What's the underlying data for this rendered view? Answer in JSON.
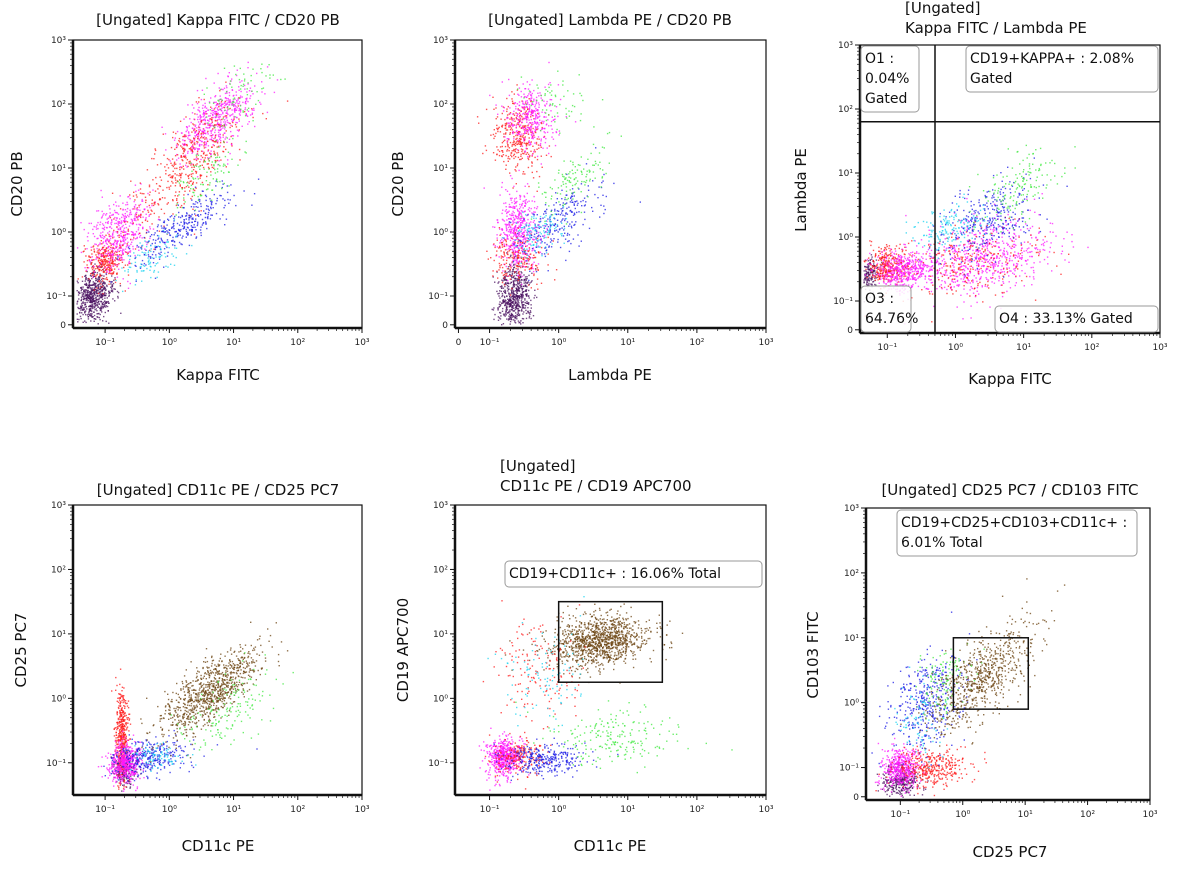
{
  "colors": {
    "purple": "#4a1060",
    "red": "#ff1a1a",
    "magenta": "#ff1aff",
    "blue": "#1a1ae6",
    "cyan": "#1ad2f0",
    "green": "#3ee83e",
    "brown": "#6b4310"
  },
  "chart_data": [
    {
      "type": "scatter",
      "title": [
        "[Ungated] Kappa FITC / CD20 PB"
      ],
      "xlabel": "Kappa FITC",
      "ylabel": "CD20 PB",
      "xscale": "log",
      "yscale": "log",
      "xlim_decades": [
        -1.5,
        3
      ],
      "ylim_decades": [
        -1.5,
        3
      ],
      "xticks": [
        "10⁻¹",
        "10⁰",
        "10¹",
        "10²",
        "10³"
      ],
      "yticks": [
        "0",
        "10⁻¹",
        "10⁰",
        "10¹",
        "10²",
        "10³"
      ],
      "populations": [
        {
          "color": "purple",
          "center": [
            -1.2,
            -1.0
          ],
          "spread": [
            0.15,
            0.2
          ],
          "n": 600,
          "corr": 0.2
        },
        {
          "color": "red",
          "center": [
            -1.0,
            -0.45
          ],
          "spread": [
            0.15,
            0.18
          ],
          "n": 300,
          "corr": 0.2
        },
        {
          "color": "magenta",
          "center": [
            -0.8,
            0.0
          ],
          "spread": [
            0.25,
            0.3
          ],
          "n": 450,
          "corr": 0.3
        },
        {
          "color": "red",
          "center": [
            0.1,
            0.8
          ],
          "spread": [
            0.5,
            0.5
          ],
          "n": 300,
          "corr": 0.8
        },
        {
          "color": "magenta",
          "center": [
            0.7,
            1.75
          ],
          "spread": [
            0.3,
            0.3
          ],
          "n": 550,
          "corr": 0.6
        },
        {
          "color": "red",
          "center": [
            0.45,
            1.4
          ],
          "spread": [
            0.3,
            0.3
          ],
          "n": 180,
          "corr": 0.5
        },
        {
          "color": "blue",
          "center": [
            0.2,
            0.1
          ],
          "spread": [
            0.4,
            0.3
          ],
          "n": 320,
          "corr": 0.85
        },
        {
          "color": "cyan",
          "center": [
            -0.3,
            -0.4
          ],
          "spread": [
            0.25,
            0.2
          ],
          "n": 100,
          "corr": 0.5
        },
        {
          "color": "green",
          "center": [
            0.6,
            0.9
          ],
          "spread": [
            0.25,
            0.25
          ],
          "n": 100,
          "corr": 0.7
        },
        {
          "color": "green",
          "center": [
            1.1,
            2.1
          ],
          "spread": [
            0.3,
            0.3
          ],
          "n": 80,
          "corr": 0.5
        }
      ],
      "gates": [],
      "annotations": []
    },
    {
      "type": "scatter",
      "title": [
        "[Ungated] Lambda PE / CD20 PB"
      ],
      "xlabel": "Lambda PE",
      "ylabel": "CD20 PB",
      "xscale": "log",
      "yscale": "log",
      "xlim_decades": [
        -1.5,
        3
      ],
      "ylim_decades": [
        -1.5,
        3
      ],
      "xticks": [
        "0",
        "10⁻¹",
        "10⁰",
        "10¹",
        "10²",
        "10³"
      ],
      "yticks": [
        "0",
        "10⁻¹",
        "10⁰",
        "10¹",
        "10²",
        "10³"
      ],
      "populations": [
        {
          "color": "purple",
          "center": [
            -0.65,
            -1.0
          ],
          "spread": [
            0.12,
            0.25
          ],
          "n": 600,
          "corr": 0
        },
        {
          "color": "magenta",
          "center": [
            -0.6,
            0.0
          ],
          "spread": [
            0.15,
            0.3
          ],
          "n": 500,
          "corr": 0
        },
        {
          "color": "red",
          "center": [
            -0.6,
            -0.4
          ],
          "spread": [
            0.2,
            0.2
          ],
          "n": 200,
          "corr": 0
        },
        {
          "color": "red",
          "center": [
            -0.6,
            1.5
          ],
          "spread": [
            0.18,
            0.3
          ],
          "n": 350,
          "corr": 0
        },
        {
          "color": "magenta",
          "center": [
            -0.4,
            1.8
          ],
          "spread": [
            0.18,
            0.25
          ],
          "n": 350,
          "corr": 0
        },
        {
          "color": "blue",
          "center": [
            0.0,
            0.2
          ],
          "spread": [
            0.3,
            0.3
          ],
          "n": 250,
          "corr": 0.6
        },
        {
          "color": "cyan",
          "center": [
            -0.3,
            0.0
          ],
          "spread": [
            0.2,
            0.2
          ],
          "n": 120,
          "corr": 0.3
        },
        {
          "color": "green",
          "center": [
            0.2,
            0.8
          ],
          "spread": [
            0.25,
            0.3
          ],
          "n": 120,
          "corr": 0.6
        },
        {
          "color": "green",
          "center": [
            -0.1,
            2.0
          ],
          "spread": [
            0.25,
            0.2
          ],
          "n": 60,
          "corr": 0
        }
      ],
      "gates": [],
      "annotations": []
    },
    {
      "type": "scatter",
      "title": [
        "[Ungated]",
        "Kappa FITC / Lambda PE"
      ],
      "xlabel": "Kappa FITC",
      "ylabel": "Lambda PE",
      "xscale": "log",
      "yscale": "log",
      "xlim_decades": [
        -1.4,
        3
      ],
      "ylim_decades": [
        -1.5,
        3
      ],
      "xticks": [
        "10⁻¹",
        "10⁰",
        "10¹",
        "10²",
        "10³"
      ],
      "yticks": [
        "0",
        "10⁻¹",
        "10⁰",
        "10¹",
        "10²",
        "10³"
      ],
      "populations": [
        {
          "color": "purple",
          "center": [
            -1.3,
            -0.55
          ],
          "spread": [
            0.08,
            0.12
          ],
          "n": 200,
          "corr": 0
        },
        {
          "color": "red",
          "center": [
            -1.0,
            -0.45
          ],
          "spread": [
            0.15,
            0.15
          ],
          "n": 300,
          "corr": 0
        },
        {
          "color": "magenta",
          "center": [
            -0.75,
            -0.5
          ],
          "spread": [
            0.2,
            0.15
          ],
          "n": 450,
          "corr": 0
        },
        {
          "color": "magenta",
          "center": [
            0.4,
            -0.3
          ],
          "spread": [
            0.5,
            0.3
          ],
          "n": 700,
          "corr": 0.3
        },
        {
          "color": "red",
          "center": [
            0.2,
            -0.4
          ],
          "spread": [
            0.5,
            0.3
          ],
          "n": 250,
          "corr": 0.3
        },
        {
          "color": "blue",
          "center": [
            0.5,
            0.3
          ],
          "spread": [
            0.35,
            0.3
          ],
          "n": 300,
          "corr": 0.4
        },
        {
          "color": "cyan",
          "center": [
            -0.1,
            0.15
          ],
          "spread": [
            0.25,
            0.2
          ],
          "n": 150,
          "corr": 0.3
        },
        {
          "color": "green",
          "center": [
            0.9,
            0.8
          ],
          "spread": [
            0.3,
            0.3
          ],
          "n": 150,
          "corr": 0.5
        }
      ],
      "gates": [
        {
          "type": "quadrant",
          "x": -0.3,
          "y": 1.8
        }
      ],
      "annotations": [
        {
          "lines": [
            "O1 :",
            "0.04%",
            "Gated"
          ]
        },
        {
          "lines": [
            "CD19+KAPPA+ : 2.08%",
            "Gated"
          ]
        },
        {
          "lines": [
            "O3 :",
            "64.76%"
          ]
        },
        {
          "lines": [
            "O4 : 33.13% Gated"
          ]
        }
      ]
    },
    {
      "type": "scatter",
      "title": [
        "[Ungated] CD11c PE / CD25 PC7"
      ],
      "xlabel": "CD11c PE",
      "ylabel": "CD25 PC7",
      "xscale": "log",
      "yscale": "log",
      "xlim_decades": [
        -1.5,
        3
      ],
      "ylim_decades": [
        -1.5,
        3
      ],
      "xticks": [
        "10⁻¹",
        "10⁰",
        "10¹",
        "10²",
        "10³"
      ],
      "yticks": [
        "10⁻¹",
        "10⁰",
        "10¹",
        "10²",
        "10³"
      ],
      "populations": [
        {
          "color": "purple",
          "center": [
            -0.7,
            -1.1
          ],
          "spread": [
            0.1,
            0.12
          ],
          "n": 200,
          "corr": 0
        },
        {
          "color": "red",
          "center": [
            -0.75,
            -0.6
          ],
          "spread": [
            0.05,
            0.4
          ],
          "n": 450,
          "corr": 0
        },
        {
          "color": "magenta",
          "center": [
            -0.7,
            -1.0
          ],
          "spread": [
            0.12,
            0.15
          ],
          "n": 500,
          "corr": 0
        },
        {
          "color": "blue",
          "center": [
            -0.3,
            -0.9
          ],
          "spread": [
            0.3,
            0.15
          ],
          "n": 300,
          "corr": 0.2
        },
        {
          "color": "brown",
          "center": [
            0.6,
            0.1
          ],
          "spread": [
            0.4,
            0.35
          ],
          "n": 900,
          "corr": 0.75
        },
        {
          "color": "green",
          "center": [
            0.9,
            -0.2
          ],
          "spread": [
            0.35,
            0.3
          ],
          "n": 150,
          "corr": 0.5
        },
        {
          "color": "cyan",
          "center": [
            -0.2,
            -0.9
          ],
          "spread": [
            0.2,
            0.1
          ],
          "n": 80,
          "corr": 0
        }
      ],
      "gates": [],
      "annotations": []
    },
    {
      "type": "scatter",
      "title": [
        "[Ungated]",
        "CD11c PE / CD19 APC700"
      ],
      "xlabel": "CD11c PE",
      "ylabel": "CD19 APC700",
      "xscale": "log",
      "yscale": "log",
      "xlim_decades": [
        -1.5,
        3
      ],
      "ylim_decades": [
        -1.5,
        3
      ],
      "xticks": [
        "10⁻¹",
        "10⁰",
        "10¹",
        "10²",
        "10³"
      ],
      "yticks": [
        "10⁻¹",
        "10⁰",
        "10¹",
        "10²",
        "10³"
      ],
      "populations": [
        {
          "color": "magenta",
          "center": [
            -0.8,
            -0.9
          ],
          "spread": [
            0.12,
            0.15
          ],
          "n": 550,
          "corr": 0
        },
        {
          "color": "red",
          "center": [
            -0.6,
            -0.9
          ],
          "spread": [
            0.2,
            0.15
          ],
          "n": 200,
          "corr": 0
        },
        {
          "color": "blue",
          "center": [
            -0.2,
            -0.95
          ],
          "spread": [
            0.3,
            0.12
          ],
          "n": 300,
          "corr": 0
        },
        {
          "color": "green",
          "center": [
            0.8,
            -0.6
          ],
          "spread": [
            0.45,
            0.2
          ],
          "n": 200,
          "corr": 0
        },
        {
          "color": "brown",
          "center": [
            0.6,
            0.9
          ],
          "spread": [
            0.35,
            0.2
          ],
          "n": 1100,
          "corr": 0.2
        },
        {
          "color": "red",
          "center": [
            -0.3,
            0.5
          ],
          "spread": [
            0.3,
            0.4
          ],
          "n": 150,
          "corr": 0
        },
        {
          "color": "cyan",
          "center": [
            -0.2,
            0.4
          ],
          "spread": [
            0.3,
            0.4
          ],
          "n": 100,
          "corr": 0
        }
      ],
      "gates": [
        {
          "type": "rect",
          "x": [
            0,
            1.5
          ],
          "y": [
            0.25,
            1.5
          ]
        }
      ],
      "annotations": [
        {
          "lines": [
            "CD19+CD11c+ : 16.06% Total"
          ]
        }
      ]
    },
    {
      "type": "scatter",
      "title": [
        "[Ungated] CD25 PC7 / CD103 FITC"
      ],
      "xlabel": "CD25 PC7",
      "ylabel": "CD103 FITC",
      "xscale": "log",
      "yscale": "log",
      "xlim_decades": [
        -1.55,
        3
      ],
      "ylim_decades": [
        -1.5,
        3
      ],
      "xticks": [
        "10⁻¹",
        "10⁰",
        "10¹",
        "10²",
        "10³"
      ],
      "yticks": [
        "0",
        "10⁻¹",
        "10⁰",
        "10¹",
        "10²",
        "10³"
      ],
      "populations": [
        {
          "color": "purple",
          "center": [
            -1.0,
            -1.2
          ],
          "spread": [
            0.15,
            0.12
          ],
          "n": 300,
          "corr": 0
        },
        {
          "color": "magenta",
          "center": [
            -1.0,
            -1.0
          ],
          "spread": [
            0.15,
            0.15
          ],
          "n": 450,
          "corr": 0
        },
        {
          "color": "red",
          "center": [
            -0.5,
            -1.0
          ],
          "spread": [
            0.3,
            0.15
          ],
          "n": 350,
          "corr": 0
        },
        {
          "color": "blue",
          "center": [
            -0.6,
            0.0
          ],
          "spread": [
            0.3,
            0.4
          ],
          "n": 400,
          "corr": 0.3
        },
        {
          "color": "green",
          "center": [
            -0.3,
            0.4
          ],
          "spread": [
            0.25,
            0.25
          ],
          "n": 120,
          "corr": 0.3
        },
        {
          "color": "brown",
          "center": [
            0.3,
            0.4
          ],
          "spread": [
            0.4,
            0.4
          ],
          "n": 700,
          "corr": 0.7
        },
        {
          "color": "cyan",
          "center": [
            -0.7,
            -0.3
          ],
          "spread": [
            0.2,
            0.3
          ],
          "n": 80,
          "corr": 0
        }
      ],
      "gates": [
        {
          "type": "rect",
          "x": [
            -0.15,
            1.05
          ],
          "y": [
            -0.1,
            1.0
          ]
        }
      ],
      "annotations": [
        {
          "lines": [
            "CD19+CD25+CD103+CD11c+ :",
            "6.01% Total"
          ]
        }
      ]
    }
  ]
}
